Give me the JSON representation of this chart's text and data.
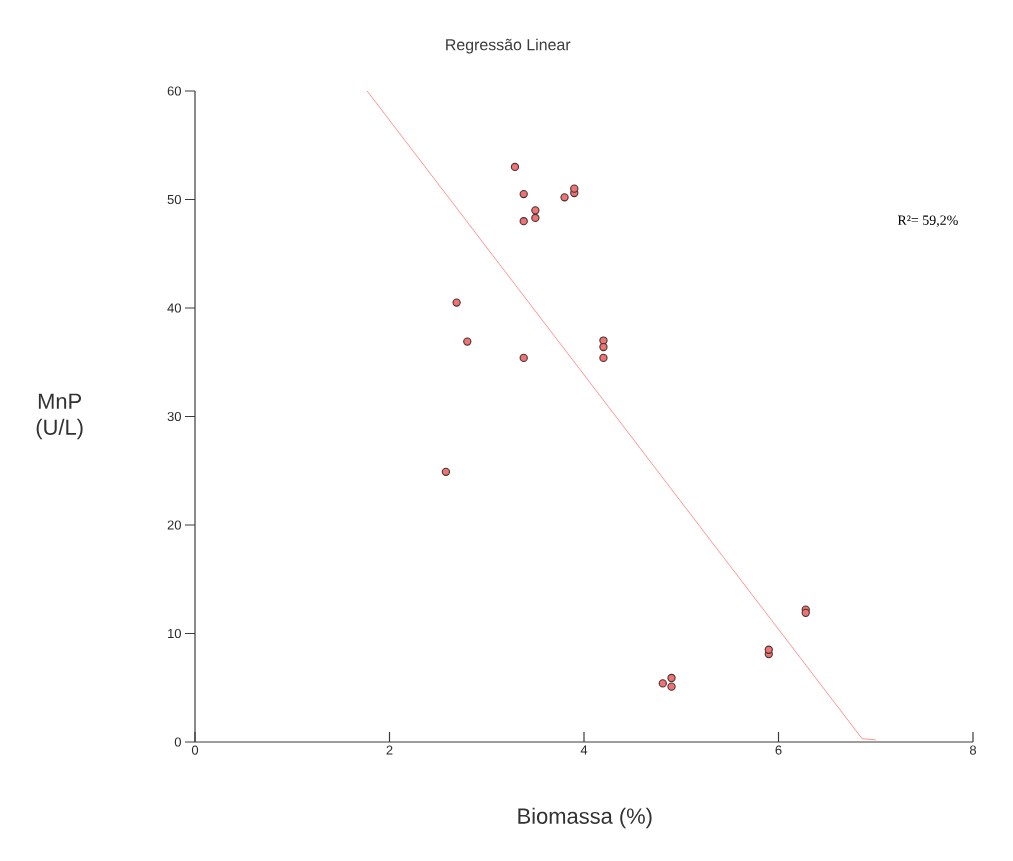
{
  "chart_data": {
    "type": "scatter",
    "title": "Regressão Linear",
    "xlabel": "Biomassa (%)",
    "ylabel": "MnP (U/L)",
    "annotations": [
      "R²= 59,2%"
    ],
    "xlim": [
      0,
      8
    ],
    "ylim": [
      0,
      60
    ],
    "xticks": [
      0,
      2,
      4,
      6,
      8
    ],
    "yticks": [
      0,
      10,
      20,
      30,
      40,
      50,
      60
    ],
    "grid": false,
    "series": [
      {
        "marker": "circle",
        "color": "#f07272",
        "x": [
          3.29,
          3.38,
          3.38,
          3.5,
          3.5,
          3.8,
          3.9,
          3.9,
          2.69,
          2.8,
          3.38,
          4.2,
          4.2,
          4.2,
          2.58,
          4.81,
          4.9,
          4.9,
          5.9,
          5.9,
          6.28,
          6.28
        ],
        "values": [
          53.0,
          50.5,
          48.0,
          49.0,
          48.3,
          50.2,
          50.6,
          51.0,
          40.5,
          36.9,
          35.4,
          37.0,
          36.4,
          35.4,
          24.9,
          5.4,
          5.9,
          5.1,
          8.1,
          8.5,
          12.2,
          11.9
        ]
      },
      {
        "type": "line",
        "marker": "none",
        "line_style": "solid",
        "color": "#ff7a7a",
        "x": [
          1.77,
          6.86,
          7.0
        ],
        "values": [
          60,
          0.3,
          0.2
        ]
      }
    ]
  }
}
